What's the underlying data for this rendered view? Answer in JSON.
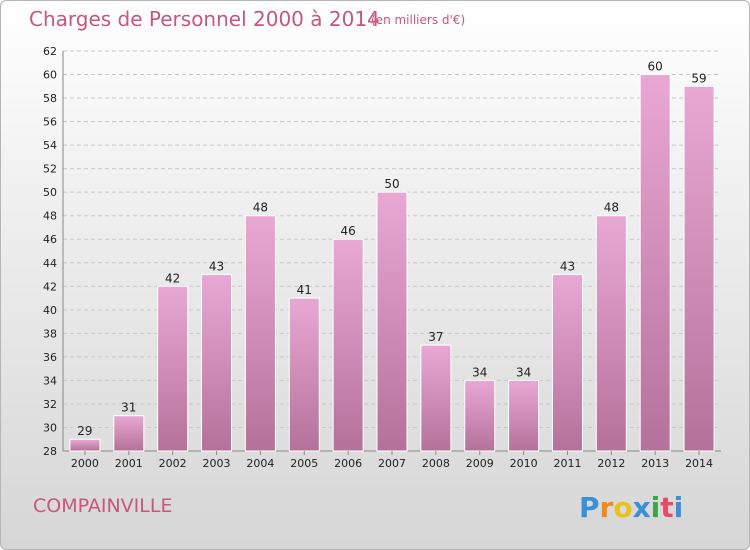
{
  "header": {
    "title": "Charges de Personnel 2000 à 2014",
    "unit": "(en milliers d'€)"
  },
  "footer": {
    "commune": "COMPAINVILLE",
    "logo_text": "Proxiti"
  },
  "colors": {
    "accent": "#c8567f",
    "bar_top": "#e9a8d4",
    "bar_bottom": "#b4729a",
    "grid": "#c8c8c8"
  },
  "chart_data": {
    "type": "bar",
    "title": "Charges de Personnel 2000 à 2014",
    "subtitle": "(en milliers d'€)",
    "categories": [
      "2000",
      "2001",
      "2002",
      "2003",
      "2004",
      "2005",
      "2006",
      "2007",
      "2008",
      "2009",
      "2010",
      "2011",
      "2012",
      "2013",
      "2014"
    ],
    "values": [
      29,
      31,
      42,
      43,
      48,
      41,
      46,
      50,
      37,
      34,
      34,
      43,
      48,
      60,
      59
    ],
    "ylim": [
      28,
      62
    ],
    "yticks": [
      28,
      30,
      32,
      34,
      36,
      38,
      40,
      42,
      44,
      46,
      48,
      50,
      52,
      54,
      56,
      58,
      60,
      62
    ],
    "grid": true,
    "legend": "none"
  }
}
